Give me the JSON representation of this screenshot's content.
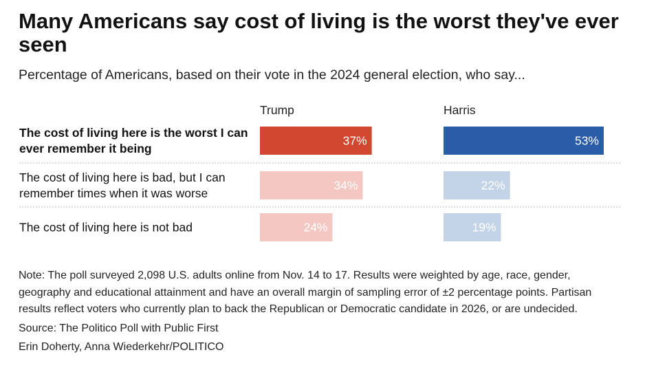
{
  "title": "Many Americans say cost of living is the worst they've ever seen",
  "subtitle": "Percentage of Americans, based on their vote in the 2024 general election, who say...",
  "chart_data": {
    "type": "bar",
    "orientation": "horizontal",
    "categories": [
      "The cost of living here is the worst I can ever remember it being",
      "The cost of living here is bad, but I can remember times when it was worse",
      "The cost of living here is not bad"
    ],
    "category_lines": [
      [
        "The cost of living here is the worst I can",
        "ever remember it being"
      ],
      [
        "The cost of living here is bad, but I can",
        "remember times when it was worse"
      ],
      [
        "The cost of living here is not bad"
      ]
    ],
    "highlighted_category": 0,
    "series": [
      {
        "name": "Trump",
        "values": [
          37,
          34,
          24
        ],
        "labels": [
          "37%",
          "34%",
          "24%"
        ],
        "color": "#d1472f",
        "light_color": "#f4c7c3"
      },
      {
        "name": "Harris",
        "values": [
          53,
          22,
          19
        ],
        "labels": [
          "53%",
          "22%",
          "19%"
        ],
        "color": "#2a5ca8",
        "light_color": "#c3d3e8"
      }
    ],
    "xlim": [
      0,
      53
    ]
  },
  "note": "Note: The poll surveyed 2,098 U.S. adults online from Nov. 14 to 17. Results were weighted by age, race, gender, geography and educational attainment and have an overall margin of sampling error of ±2 percentage points. Partisan results reflect voters who currently plan to back the Republican or Democratic candidate in 2026, or are undecided.",
  "source": "Source: The Politico Poll with Public First",
  "credit": "Erin Doherty, Anna Wiederkehr/POLITICO"
}
